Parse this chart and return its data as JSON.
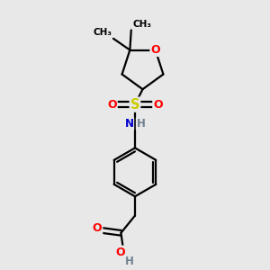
{
  "background_color": "#e8e8e8",
  "atom_colors": {
    "C": "#000000",
    "H": "#708090",
    "O": "#ff0000",
    "N": "#0000cd",
    "S": "#cccc00"
  },
  "bond_color": "#000000",
  "figsize": [
    3.0,
    3.0
  ],
  "dpi": 100,
  "bond_lw": 1.6,
  "font_size": 8.5
}
